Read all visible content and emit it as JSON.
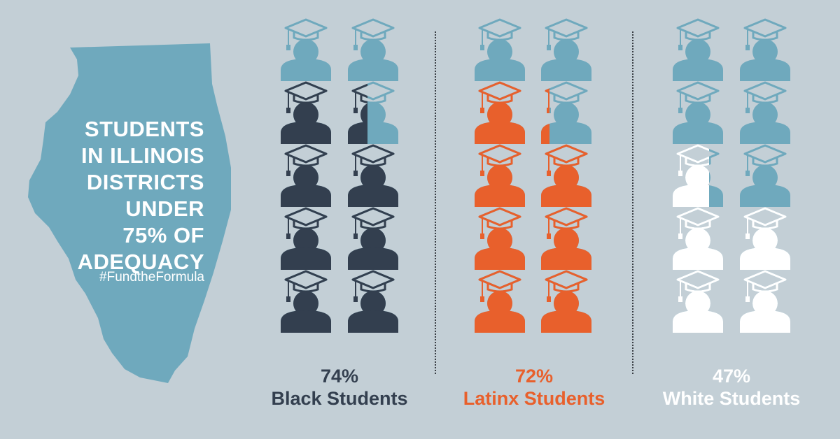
{
  "title": {
    "lines": [
      "STUDENTS",
      "IN ILLINOIS",
      "DISTRICTS",
      "UNDER",
      "75% OF",
      "ADEQUACY"
    ]
  },
  "hashtag": "#FundtheFormula",
  "colors": {
    "background": "#c3cfd6",
    "map": "#6fa9bd",
    "empty_icon": "#6fa9bd",
    "black_students": "#333f4f",
    "latinx_students": "#e8602c",
    "white_students": "#ffffff"
  },
  "icon_name": "graduate-icon",
  "chart_data": {
    "type": "pictograph",
    "icons_per_group": 10,
    "categories": [
      "Black Students",
      "Latinx Students",
      "White Students"
    ],
    "series": [
      {
        "name": "Black Students",
        "percent_label": "74%",
        "value": 74
      },
      {
        "name": "Latinx Students",
        "percent_label": "72%",
        "value": 72
      },
      {
        "name": "White Students",
        "percent_label": "47%",
        "value": 47
      }
    ]
  }
}
